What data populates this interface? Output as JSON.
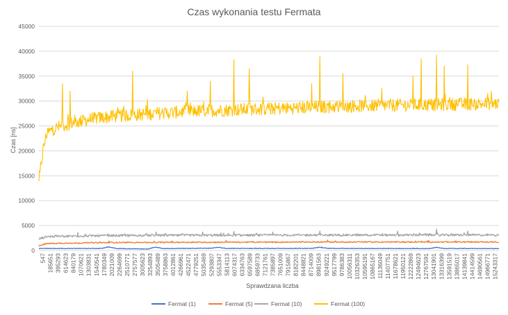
{
  "chart_data": {
    "type": "line",
    "title": "Czas wykonania testu Fermata",
    "xlabel": "Sprawdzana liczba",
    "ylabel": "Czas [ns]",
    "ylim": [
      0,
      45000
    ],
    "yticks": [
      0,
      5000,
      10000,
      15000,
      20000,
      25000,
      30000,
      35000,
      40000,
      45000
    ],
    "grid": true,
    "legend_position": "bottom",
    "x_tick_labels": [
      "547",
      "185651",
      "395293",
      "614623",
      "840179",
      "1070621",
      "1303831",
      "1540541",
      "1780349",
      "2021009",
      "2264699",
      "2510771",
      "2757577",
      "3005623",
      "3254893",
      "3505489",
      "3758863",
      "4012861",
      "4266961",
      "4522471",
      "4779251",
      "5035469",
      "5293807",
      "5553347",
      "5814113",
      "6074317",
      "6334763",
      "6597589",
      "6859733",
      "7121761",
      "7385897",
      "7651009",
      "7915867",
      "8182201",
      "8448821",
      "8714009",
      "8981563",
      "9249221",
      "9517799",
      "9786383",
      "10056311",
      "10326353",
      "10595191",
      "10865167",
      "11136049",
      "11407751",
      "11678621",
      "11950121",
      "12222869",
      "12494623",
      "12767591",
      "13041901",
      "13316399",
      "13591519",
      "13865017",
      "14139841",
      "14414599",
      "14690561",
      "14966771",
      "15243317"
    ],
    "series": [
      {
        "name": "Fermat (1)",
        "color": "#4472c4",
        "level_points": [
          [
            0,
            400
          ],
          [
            8,
            400
          ],
          [
            9,
            700
          ],
          [
            10,
            380
          ],
          [
            14,
            300
          ],
          [
            15,
            650
          ],
          [
            16,
            380
          ],
          [
            22,
            450
          ],
          [
            23,
            650
          ],
          [
            24,
            400
          ],
          [
            35,
            420
          ],
          [
            36,
            650
          ],
          [
            37,
            420
          ],
          [
            50,
            380
          ],
          [
            51,
            620
          ],
          [
            52,
            400
          ],
          [
            59,
            380
          ]
        ],
        "noise": 50
      },
      {
        "name": "Fermat (5)",
        "color": "#ed7d31",
        "level_points": [
          [
            0,
            900
          ],
          [
            1,
            1400
          ],
          [
            5,
            1500
          ],
          [
            10,
            1600
          ],
          [
            20,
            1650
          ],
          [
            40,
            1700
          ],
          [
            59,
            1700
          ]
        ],
        "noise": 120,
        "spikes": [
          [
            9,
            1900
          ],
          [
            24,
            2000
          ],
          [
            37,
            2100
          ],
          [
            50,
            2000
          ]
        ]
      },
      {
        "name": "Fermat (10)",
        "color": "#a5a5a5",
        "level_points": [
          [
            0,
            2300
          ],
          [
            1,
            2800
          ],
          [
            5,
            2900
          ],
          [
            10,
            3000
          ],
          [
            20,
            3050
          ],
          [
            40,
            3100
          ],
          [
            59,
            3100
          ]
        ],
        "noise": 220,
        "spikes": [
          [
            5,
            3600
          ],
          [
            15,
            3700
          ],
          [
            21,
            3700
          ],
          [
            25,
            3800
          ],
          [
            30,
            3700
          ],
          [
            36,
            3900
          ],
          [
            46,
            3900
          ],
          [
            51,
            4300
          ],
          [
            55,
            3900
          ]
        ]
      },
      {
        "name": "Fermat (100)",
        "color": "#ffc000",
        "level_points": [
          [
            0,
            13500
          ],
          [
            0.5,
            20000
          ],
          [
            1,
            23500
          ],
          [
            2,
            24500
          ],
          [
            4,
            25500
          ],
          [
            7,
            26500
          ],
          [
            10,
            27000
          ],
          [
            15,
            27500
          ],
          [
            20,
            28000
          ],
          [
            30,
            28500
          ],
          [
            40,
            29000
          ],
          [
            59,
            29500
          ]
        ],
        "noise": 1300,
        "spikes": [
          [
            3,
            33500
          ],
          [
            4,
            32000
          ],
          [
            12,
            36000
          ],
          [
            19,
            32000
          ],
          [
            22,
            34000
          ],
          [
            25,
            38300
          ],
          [
            27,
            36500
          ],
          [
            35,
            33500
          ],
          [
            36,
            39000
          ],
          [
            39,
            35500
          ],
          [
            44,
            32500
          ],
          [
            48,
            35000
          ],
          [
            49,
            38500
          ],
          [
            51,
            39200
          ],
          [
            52,
            37000
          ],
          [
            55,
            37300
          ],
          [
            58,
            32000
          ]
        ]
      }
    ]
  }
}
